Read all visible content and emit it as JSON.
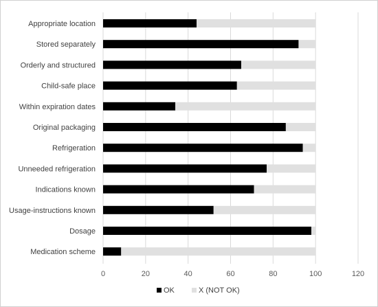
{
  "chart_data": {
    "type": "bar",
    "orientation": "horizontal",
    "stacked": true,
    "categories": [
      "Appropriate location",
      "Stored separately",
      "Orderly and structured",
      "Child-safe place",
      "Within expiration dates",
      "Original packaging",
      "Refrigeration",
      "Unneeded refrigeration",
      "Indications known",
      "Usage-instructions known",
      "Dosage",
      "Medication scheme"
    ],
    "series": [
      {
        "name": "OK",
        "color": "#000000",
        "values": [
          44,
          92,
          65,
          63,
          34,
          86,
          94,
          77,
          71,
          52,
          98,
          8.5
        ]
      },
      {
        "name": "X (NOT OK)",
        "color": "#e0e0e0",
        "values": [
          56,
          8,
          35,
          37,
          66,
          14,
          6,
          23,
          29,
          48,
          2,
          91.5
        ]
      }
    ],
    "xlim": [
      0,
      120
    ],
    "xticks": [
      "0",
      "20",
      "40",
      "60",
      "80",
      "100",
      "120"
    ],
    "grid": "vertical",
    "legend": "bottom",
    "title": "",
    "xlabel": "",
    "ylabel": ""
  }
}
